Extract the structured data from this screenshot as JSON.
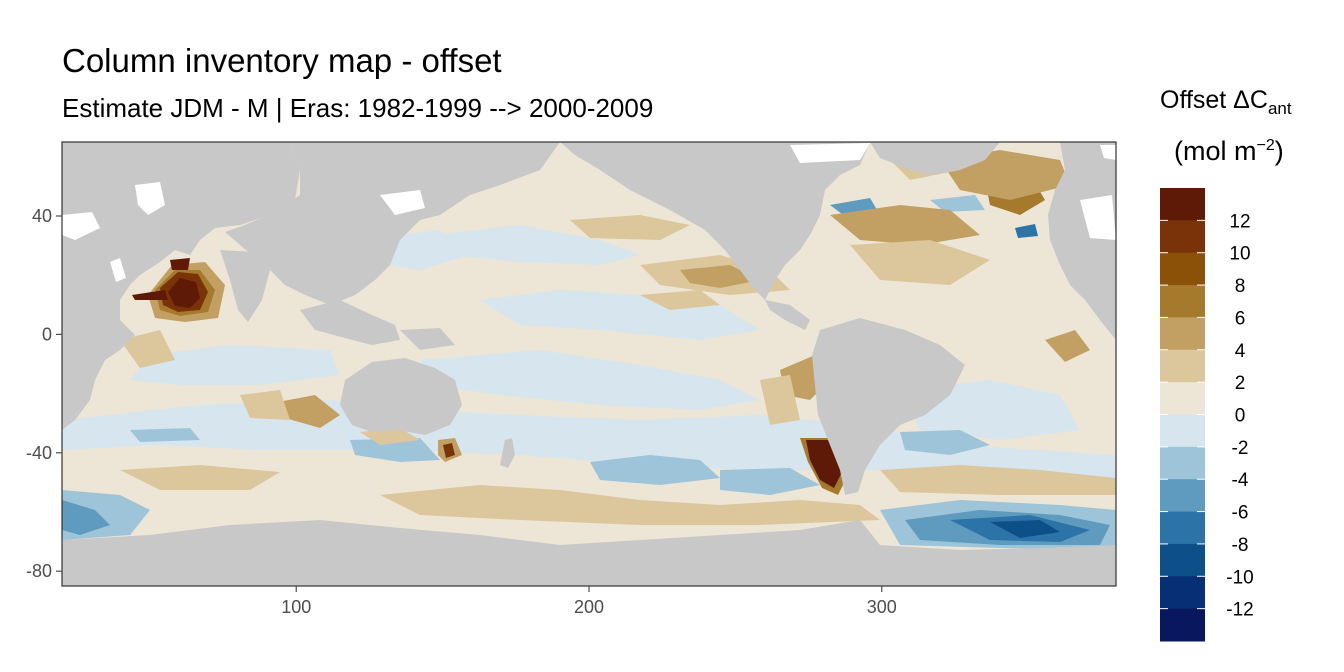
{
  "title": "Column inventory map - offset",
  "subtitle": "Estimate JDM - M | Eras: 1982-1999 --> 2000-2009",
  "legend": {
    "title_main": "Offset ΔC",
    "title_sub": "ant",
    "unit_main": "(mol m",
    "unit_sup": "−2",
    "unit_close": ")",
    "labels": [
      "12",
      "10",
      "8",
      "6",
      "4",
      "2",
      "0",
      "-2",
      "-4",
      "-6",
      "-8",
      "-10",
      "-12"
    ],
    "bin_colors": [
      "#5e1a06",
      "#7a3308",
      "#8c5109",
      "#a57a2c",
      "#c2a064",
      "#dcc69c",
      "#ede6d6",
      "#d7e5ee",
      "#9ec4d9",
      "#5e9bbe",
      "#2c73a8",
      "#0d5089",
      "#062f75",
      "#08175e"
    ]
  },
  "colors": {
    "land": "#c8c8c8",
    "panel_border": "#333333",
    "tick": "#4d4d4d"
  },
  "chart_data": {
    "type": "heatmap",
    "xlim": [
      20,
      380
    ],
    "ylim": [
      -85,
      65
    ],
    "x_ticks": [
      100,
      200,
      300
    ],
    "y_ticks": [
      40,
      0,
      -40,
      -80
    ],
    "x_tick_labels": [
      "100",
      "200",
      "300"
    ],
    "y_tick_labels": [
      "40",
      "0",
      "-40",
      "-80"
    ],
    "legend_breaks": [
      12,
      10,
      8,
      6,
      4,
      2,
      0,
      -2,
      -4,
      -6,
      -8,
      -10,
      -12
    ],
    "grid": false,
    "legend_position": "right"
  }
}
